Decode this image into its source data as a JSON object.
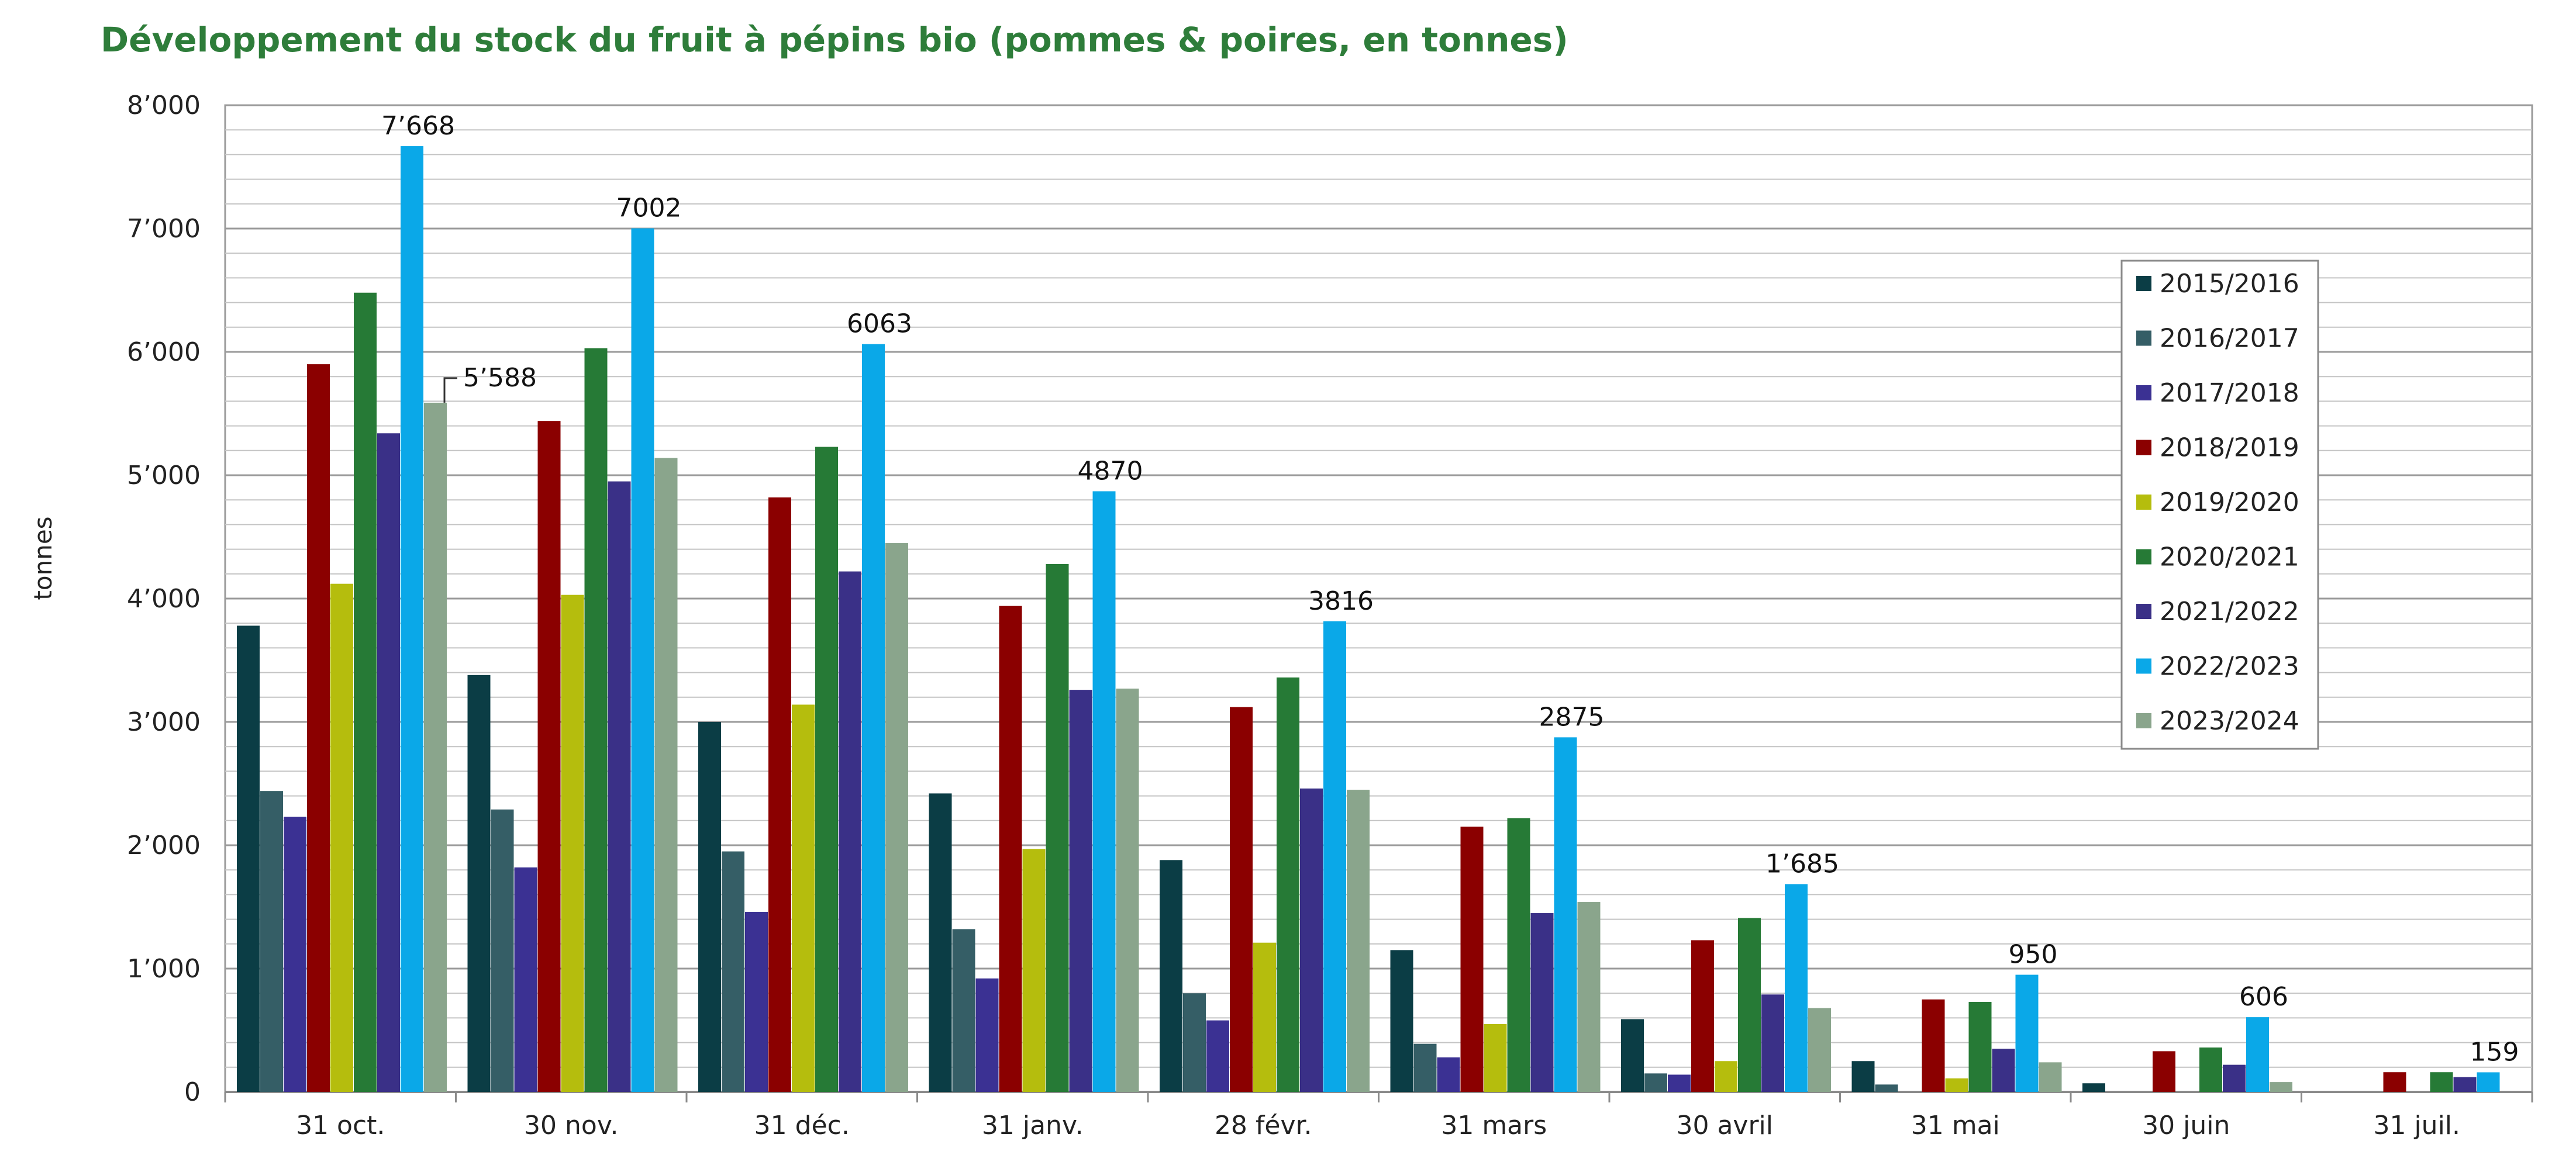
{
  "chart_data": {
    "type": "bar",
    "title": "Développement du stock du fruit à pépins bio (pommes & poires, en tonnes)",
    "ylabel": "tonnes",
    "xlabel": "",
    "ylim": [
      0,
      8000
    ],
    "yticks": [
      0,
      1000,
      2000,
      3000,
      4000,
      5000,
      6000,
      7000,
      8000
    ],
    "ytick_labels": [
      "0",
      "1’000",
      "2’000",
      "3’000",
      "4’000",
      "5’000",
      "6’000",
      "7’000",
      "8’000"
    ],
    "grid": "horizontal",
    "legend_position": "right",
    "categories": [
      "31 oct.",
      "30 nov.",
      "31 déc.",
      "31 janv.",
      "28 févr.",
      "31 mars",
      "30 avril",
      "31 mai",
      "30 juin",
      "31 juil."
    ],
    "series": [
      {
        "name": "2015/2016",
        "color": "#0b3d45",
        "values": [
          3780,
          3380,
          3000,
          2420,
          1880,
          1150,
          590,
          250,
          70,
          0
        ]
      },
      {
        "name": "2016/2017",
        "color": "#355e66",
        "values": [
          2440,
          2290,
          1950,
          1320,
          800,
          390,
          150,
          60,
          0,
          0
        ]
      },
      {
        "name": "2017/2018",
        "color": "#3b3193",
        "values": [
          2230,
          1820,
          1460,
          920,
          580,
          280,
          140,
          0,
          0,
          0
        ]
      },
      {
        "name": "2018/2019",
        "color": "#8b0000",
        "values": [
          5900,
          5440,
          4820,
          3940,
          3120,
          2150,
          1230,
          750,
          330,
          160
        ]
      },
      {
        "name": "2019/2020",
        "color": "#b5bd0d",
        "values": [
          4120,
          4030,
          3140,
          1970,
          1210,
          550,
          250,
          110,
          0,
          0
        ]
      },
      {
        "name": "2020/2021",
        "color": "#267a36",
        "values": [
          6480,
          6030,
          5230,
          4280,
          3360,
          2220,
          1410,
          730,
          360,
          160
        ]
      },
      {
        "name": "2021/2022",
        "color": "#3a3087",
        "values": [
          5340,
          4950,
          4220,
          3260,
          2460,
          1450,
          790,
          350,
          220,
          120
        ]
      },
      {
        "name": "2022/2023",
        "color": "#0aa8e8",
        "values": [
          7668,
          7002,
          6063,
          4870,
          3816,
          2875,
          1685,
          950,
          606,
          159
        ]
      },
      {
        "name": "2023/2024",
        "color": "#8aa58c",
        "values": [
          5588,
          5140,
          4450,
          3270,
          2450,
          1540,
          680,
          240,
          80,
          0
        ]
      }
    ],
    "data_labels": [
      {
        "series": "2022/2023",
        "category": "31 oct.",
        "text": "7’668"
      },
      {
        "series": "2023/2024",
        "category": "31 oct.",
        "text": "5’588",
        "leader": true
      },
      {
        "series": "2022/2023",
        "category": "30 nov.",
        "text": "7002"
      },
      {
        "series": "2022/2023",
        "category": "31 déc.",
        "text": "6063"
      },
      {
        "series": "2022/2023",
        "category": "31 janv.",
        "text": "4870"
      },
      {
        "series": "2022/2023",
        "category": "28 févr.",
        "text": "3816"
      },
      {
        "series": "2022/2023",
        "category": "31 mars",
        "text": "2875"
      },
      {
        "series": "2022/2023",
        "category": "30 avril",
        "text": "1’685"
      },
      {
        "series": "2022/2023",
        "category": "31 mai",
        "text": "950"
      },
      {
        "series": "2022/2023",
        "category": "30 juin",
        "text": "606"
      },
      {
        "series": "2022/2023",
        "category": "31 juil.",
        "text": "159"
      }
    ]
  }
}
